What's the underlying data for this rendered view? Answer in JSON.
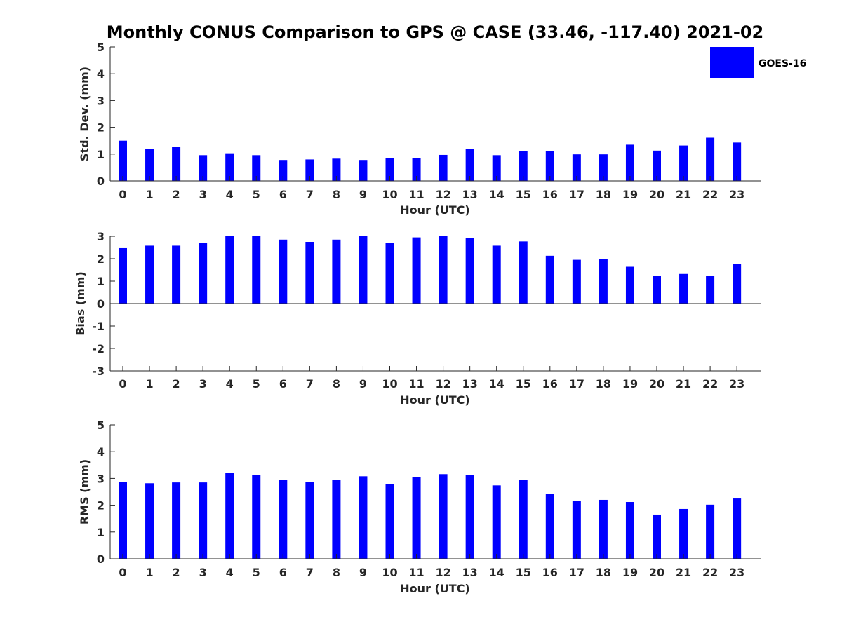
{
  "title": "Monthly CONUS Comparison to GPS @ CASE (33.46, -117.40) 2021-02",
  "legend": {
    "label": "GOES-16",
    "placement": "top-right"
  },
  "chart_data": [
    {
      "type": "bar",
      "color": "#0000FF",
      "xlabel": "Hour (UTC)",
      "ylabel": "Std. Dev. (mm)",
      "ylim": [
        0,
        5
      ],
      "yticks": [
        "0",
        "1",
        "2",
        "3",
        "4",
        "5"
      ],
      "categories": [
        "0",
        "1",
        "2",
        "3",
        "4",
        "5",
        "6",
        "7",
        "8",
        "9",
        "10",
        "11",
        "12",
        "13",
        "14",
        "15",
        "16",
        "17",
        "18",
        "19",
        "20",
        "21",
        "22",
        "23"
      ],
      "values": [
        1.5,
        1.2,
        1.27,
        0.96,
        1.03,
        0.96,
        0.78,
        0.8,
        0.83,
        0.78,
        0.85,
        0.86,
        0.97,
        1.2,
        0.96,
        1.12,
        1.1,
        0.99,
        0.99,
        1.35,
        1.13,
        1.32,
        1.61,
        1.43
      ],
      "grid": false
    },
    {
      "type": "bar",
      "color": "#0000FF",
      "xlabel": "Hour (UTC)",
      "ylabel": "Bias (mm)",
      "ylim": [
        -3,
        3
      ],
      "yticks": [
        "-3",
        "-2",
        "-1",
        "0",
        "1",
        "2",
        "3"
      ],
      "categories": [
        "0",
        "1",
        "2",
        "3",
        "4",
        "5",
        "6",
        "7",
        "8",
        "9",
        "10",
        "11",
        "12",
        "13",
        "14",
        "15",
        "16",
        "17",
        "18",
        "19",
        "20",
        "21",
        "22",
        "23"
      ],
      "values": [
        2.47,
        2.58,
        2.58,
        2.7,
        3.0,
        3.0,
        2.85,
        2.75,
        2.85,
        3.0,
        2.7,
        2.95,
        3.0,
        2.92,
        2.58,
        2.77,
        2.13,
        1.95,
        1.98,
        1.64,
        1.22,
        1.32,
        1.24,
        1.77
      ],
      "grid": false
    },
    {
      "type": "bar",
      "color": "#0000FF",
      "xlabel": "Hour (UTC)",
      "ylabel": "RMS (mm)",
      "ylim": [
        0,
        5
      ],
      "yticks": [
        "0",
        "1",
        "2",
        "3",
        "4",
        "5"
      ],
      "categories": [
        "0",
        "1",
        "2",
        "3",
        "4",
        "5",
        "6",
        "7",
        "8",
        "9",
        "10",
        "11",
        "12",
        "13",
        "14",
        "15",
        "16",
        "17",
        "18",
        "19",
        "20",
        "21",
        "22",
        "23"
      ],
      "values": [
        2.87,
        2.82,
        2.85,
        2.85,
        3.2,
        3.13,
        2.95,
        2.87,
        2.95,
        3.08,
        2.8,
        3.06,
        3.16,
        3.13,
        2.74,
        2.95,
        2.41,
        2.17,
        2.2,
        2.12,
        1.65,
        1.86,
        2.02,
        2.25
      ],
      "grid": false
    }
  ]
}
